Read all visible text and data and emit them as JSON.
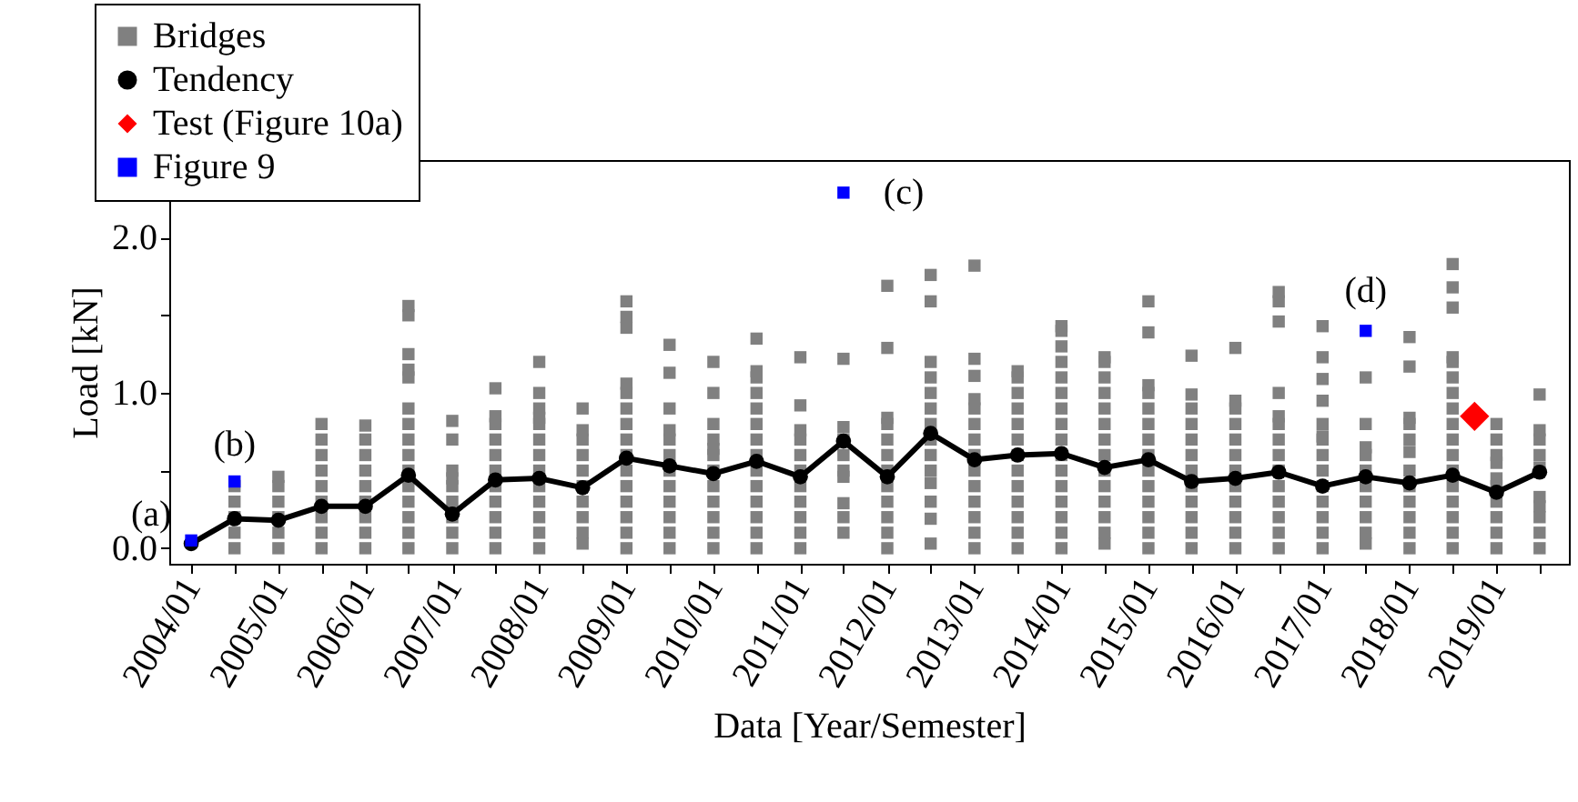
{
  "chart_data": {
    "type": "scatter",
    "xlabel": "Data [Year/Semester]",
    "ylabel": "Load [kN]",
    "xlim": [
      "2003-10",
      "2019-11"
    ],
    "ylim": [
      -0.1,
      2.5
    ],
    "xticks": [
      {
        "value": "2004-01",
        "label": "2004/01"
      },
      {
        "value": "2004-07",
        "label": null
      },
      {
        "value": "2005-01",
        "label": "2005/01"
      },
      {
        "value": "2005-07",
        "label": null
      },
      {
        "value": "2006-01",
        "label": "2006/01"
      },
      {
        "value": "2006-07",
        "label": null
      },
      {
        "value": "2007-01",
        "label": "2007/01"
      },
      {
        "value": "2007-07",
        "label": null
      },
      {
        "value": "2008-01",
        "label": "2008/01"
      },
      {
        "value": "2008-07",
        "label": null
      },
      {
        "value": "2009-01",
        "label": "2009/01"
      },
      {
        "value": "2009-07",
        "label": null
      },
      {
        "value": "2010-01",
        "label": "2010/01"
      },
      {
        "value": "2010-07",
        "label": null
      },
      {
        "value": "2011-01",
        "label": "2011/01"
      },
      {
        "value": "2011-07",
        "label": null
      },
      {
        "value": "2012-01",
        "label": "2012/01"
      },
      {
        "value": "2012-07",
        "label": null
      },
      {
        "value": "2013-01",
        "label": "2013/01"
      },
      {
        "value": "2013-07",
        "label": null
      },
      {
        "value": "2014-01",
        "label": "2014/01"
      },
      {
        "value": "2014-07",
        "label": null
      },
      {
        "value": "2015-01",
        "label": "2015/01"
      },
      {
        "value": "2015-07",
        "label": null
      },
      {
        "value": "2016-01",
        "label": "2016/01"
      },
      {
        "value": "2016-07",
        "label": null
      },
      {
        "value": "2017-01",
        "label": "2017/01"
      },
      {
        "value": "2017-07",
        "label": null
      },
      {
        "value": "2018-01",
        "label": "2018/01"
      },
      {
        "value": "2018-07",
        "label": null
      },
      {
        "value": "2019-01",
        "label": "2019/01"
      },
      {
        "value": "2019-07",
        "label": null
      }
    ],
    "yticks": [
      {
        "value": 0,
        "label": "0.0"
      },
      {
        "value": 0.5,
        "label": null
      },
      {
        "value": 1,
        "label": "1.0"
      },
      {
        "value": 1.5,
        "label": null
      },
      {
        "value": 2,
        "label": "2.0"
      }
    ],
    "legend": "top left",
    "grid": false,
    "series": [
      {
        "name": "Bridges",
        "marker": "square",
        "color": "#808080",
        "x": [
          "2004-07",
          "2004-07",
          "2004-07",
          "2004-07",
          "2004-07",
          "2005-01",
          "2005-01",
          "2005-01",
          "2005-01",
          "2005-01",
          "2005-01",
          "2005-07",
          "2005-07",
          "2005-07",
          "2005-07",
          "2005-07",
          "2005-07",
          "2005-07",
          "2005-07",
          "2005-07",
          "2006-01",
          "2006-01",
          "2006-01",
          "2006-01",
          "2006-01",
          "2006-01",
          "2006-01",
          "2006-01",
          "2006-01",
          "2006-07",
          "2006-07",
          "2006-07",
          "2006-07",
          "2006-07",
          "2006-07",
          "2006-07",
          "2006-07",
          "2006-07",
          "2006-07",
          "2006-07",
          "2006-07",
          "2006-07",
          "2006-07",
          "2006-07",
          "2007-01",
          "2007-01",
          "2007-01",
          "2007-01",
          "2007-01",
          "2007-01",
          "2007-01",
          "2007-01",
          "2007-01",
          "2007-07",
          "2007-07",
          "2007-07",
          "2007-07",
          "2007-07",
          "2007-07",
          "2007-07",
          "2007-07",
          "2007-07",
          "2007-07",
          "2007-07",
          "2008-01",
          "2008-01",
          "2008-01",
          "2008-01",
          "2008-01",
          "2008-01",
          "2008-01",
          "2008-01",
          "2008-01",
          "2008-01",
          "2008-01",
          "2008-01",
          "2008-01",
          "2008-07",
          "2008-07",
          "2008-07",
          "2008-07",
          "2008-07",
          "2008-07",
          "2008-07",
          "2008-07",
          "2008-07",
          "2008-07",
          "2009-01",
          "2009-01",
          "2009-01",
          "2009-01",
          "2009-01",
          "2009-01",
          "2009-01",
          "2009-01",
          "2009-01",
          "2009-01",
          "2009-01",
          "2009-01",
          "2009-01",
          "2009-01",
          "2009-01",
          "2009-07",
          "2009-07",
          "2009-07",
          "2009-07",
          "2009-07",
          "2009-07",
          "2009-07",
          "2009-07",
          "2009-07",
          "2009-07",
          "2009-07",
          "2009-07",
          "2010-01",
          "2010-01",
          "2010-01",
          "2010-01",
          "2010-01",
          "2010-01",
          "2010-01",
          "2010-01",
          "2010-01",
          "2010-01",
          "2010-01",
          "2010-01",
          "2010-07",
          "2010-07",
          "2010-07",
          "2010-07",
          "2010-07",
          "2010-07",
          "2010-07",
          "2010-07",
          "2010-07",
          "2010-07",
          "2010-07",
          "2010-07",
          "2010-07",
          "2010-07",
          "2011-01",
          "2011-01",
          "2011-01",
          "2011-01",
          "2011-01",
          "2011-01",
          "2011-01",
          "2011-01",
          "2011-01",
          "2011-01",
          "2011-01",
          "2011-07",
          "2011-07",
          "2011-07",
          "2011-07",
          "2011-07",
          "2011-07",
          "2011-07",
          "2011-07",
          "2011-07",
          "2012-01",
          "2012-01",
          "2012-01",
          "2012-01",
          "2012-01",
          "2012-01",
          "2012-01",
          "2012-01",
          "2012-01",
          "2012-01",
          "2012-01",
          "2012-01",
          "2012-07",
          "2012-07",
          "2012-07",
          "2012-07",
          "2012-07",
          "2012-07",
          "2012-07",
          "2012-07",
          "2012-07",
          "2012-07",
          "2012-07",
          "2012-07",
          "2012-07",
          "2012-07",
          "2013-01",
          "2013-01",
          "2013-01",
          "2013-01",
          "2013-01",
          "2013-01",
          "2013-01",
          "2013-01",
          "2013-01",
          "2013-01",
          "2013-01",
          "2013-01",
          "2013-01",
          "2013-01",
          "2013-07",
          "2013-07",
          "2013-07",
          "2013-07",
          "2013-07",
          "2013-07",
          "2013-07",
          "2013-07",
          "2013-07",
          "2013-07",
          "2013-07",
          "2013-07",
          "2013-07",
          "2014-01",
          "2014-01",
          "2014-01",
          "2014-01",
          "2014-01",
          "2014-01",
          "2014-01",
          "2014-01",
          "2014-01",
          "2014-01",
          "2014-01",
          "2014-01",
          "2014-01",
          "2014-01",
          "2014-01",
          "2014-01",
          "2014-07",
          "2014-07",
          "2014-07",
          "2014-07",
          "2014-07",
          "2014-07",
          "2014-07",
          "2014-07",
          "2014-07",
          "2014-07",
          "2014-07",
          "2014-07",
          "2014-07",
          "2014-07",
          "2015-01",
          "2015-01",
          "2015-01",
          "2015-01",
          "2015-01",
          "2015-01",
          "2015-01",
          "2015-01",
          "2015-01",
          "2015-01",
          "2015-01",
          "2015-01",
          "2015-01",
          "2015-01",
          "2015-07",
          "2015-07",
          "2015-07",
          "2015-07",
          "2015-07",
          "2015-07",
          "2015-07",
          "2015-07",
          "2015-07",
          "2015-07",
          "2015-07",
          "2015-07",
          "2016-01",
          "2016-01",
          "2016-01",
          "2016-01",
          "2016-01",
          "2016-01",
          "2016-01",
          "2016-01",
          "2016-01",
          "2016-01",
          "2016-01",
          "2016-01",
          "2016-07",
          "2016-07",
          "2016-07",
          "2016-07",
          "2016-07",
          "2016-07",
          "2016-07",
          "2016-07",
          "2016-07",
          "2016-07",
          "2016-07",
          "2016-07",
          "2016-07",
          "2016-07",
          "2017-01",
          "2017-01",
          "2017-01",
          "2017-01",
          "2017-01",
          "2017-01",
          "2017-01",
          "2017-01",
          "2017-01",
          "2017-01",
          "2017-01",
          "2017-01",
          "2017-01",
          "2017-01",
          "2017-07",
          "2017-07",
          "2017-07",
          "2017-07",
          "2017-07",
          "2017-07",
          "2017-07",
          "2017-07",
          "2017-07",
          "2017-07",
          "2018-01",
          "2018-01",
          "2018-01",
          "2018-01",
          "2018-01",
          "2018-01",
          "2018-01",
          "2018-01",
          "2018-01",
          "2018-01",
          "2018-01",
          "2018-01",
          "2018-07",
          "2018-07",
          "2018-07",
          "2018-07",
          "2018-07",
          "2018-07",
          "2018-07",
          "2018-07",
          "2018-07",
          "2018-07",
          "2018-07",
          "2018-07",
          "2018-07",
          "2018-07",
          "2018-07",
          "2018-07",
          "2018-07",
          "2019-01",
          "2019-01",
          "2019-01",
          "2019-01",
          "2019-01",
          "2019-01",
          "2019-01",
          "2019-01",
          "2019-01",
          "2019-01",
          "2019-07",
          "2019-07",
          "2019-07",
          "2019-07",
          "2019-07",
          "2019-07",
          "2019-07",
          "2019-07",
          "2019-07",
          "2019-07"
        ],
        "values": [
          0,
          0.1,
          0.2,
          0.3,
          0.4,
          0,
          0.1,
          0.2,
          0.3,
          0.4,
          0.46,
          0,
          0.1,
          0.2,
          0.3,
          0.4,
          0.5,
          0.6,
          0.7,
          0.8,
          0,
          0.1,
          0.2,
          0.3,
          0.4,
          0.5,
          0.6,
          0.7,
          0.79,
          0,
          0.1,
          0.2,
          0.3,
          0.4,
          0.5,
          0.6,
          0.7,
          0.8,
          0.9,
          1.1,
          1.15,
          1.25,
          1.5,
          1.56,
          0,
          0.1,
          0.2,
          0.3,
          0.4,
          0.45,
          0.5,
          0.7,
          0.82,
          0,
          0.1,
          0.2,
          0.3,
          0.4,
          0.5,
          0.6,
          0.7,
          0.8,
          0.85,
          1.03,
          0,
          0.1,
          0.2,
          0.3,
          0.4,
          0.5,
          0.6,
          0.7,
          0.8,
          0.84,
          0.9,
          1.0,
          1.2,
          0.03,
          0.1,
          0.2,
          0.3,
          0.4,
          0.5,
          0.6,
          0.7,
          0.76,
          0.9,
          0,
          0.1,
          0.2,
          0.3,
          0.4,
          0.5,
          0.6,
          0.7,
          0.8,
          0.9,
          1.0,
          1.06,
          1.42,
          1.49,
          1.59,
          0,
          0.1,
          0.2,
          0.3,
          0.4,
          0.5,
          0.6,
          0.7,
          0.76,
          0.9,
          1.13,
          1.31,
          0,
          0.1,
          0.2,
          0.3,
          0.4,
          0.5,
          0.6,
          0.64,
          0.7,
          0.8,
          1.0,
          1.2,
          0,
          0.1,
          0.2,
          0.3,
          0.4,
          0.5,
          0.6,
          0.7,
          0.8,
          0.9,
          1.0,
          1.1,
          1.14,
          1.35,
          0,
          0.1,
          0.2,
          0.3,
          0.4,
          0.5,
          0.6,
          0.7,
          0.76,
          0.92,
          1.23,
          0.1,
          0.2,
          0.29,
          0.46,
          0.5,
          0.6,
          0.7,
          0.78,
          1.22,
          0,
          0.1,
          0.2,
          0.3,
          0.4,
          0.5,
          0.6,
          0.7,
          0.8,
          0.84,
          1.29,
          1.69,
          0.03,
          0.19,
          0.3,
          0.42,
          0.5,
          0.6,
          0.7,
          0.8,
          0.9,
          1.0,
          1.1,
          1.2,
          1.59,
          1.76,
          0,
          0.1,
          0.2,
          0.3,
          0.4,
          0.5,
          0.6,
          0.7,
          0.8,
          0.9,
          0.96,
          1.11,
          1.22,
          1.82,
          0,
          0.1,
          0.2,
          0.3,
          0.4,
          0.5,
          0.6,
          0.7,
          0.8,
          0.9,
          1.0,
          1.1,
          1.14,
          0,
          0.1,
          0.2,
          0.3,
          0.4,
          0.5,
          0.6,
          0.7,
          0.8,
          0.9,
          1.0,
          1.1,
          1.2,
          1.3,
          1.4,
          1.43,
          0.03,
          0.1,
          0.2,
          0.3,
          0.4,
          0.5,
          0.6,
          0.7,
          0.8,
          0.9,
          1.0,
          1.1,
          1.2,
          1.23,
          0,
          0.1,
          0.2,
          0.3,
          0.4,
          0.5,
          0.6,
          0.7,
          0.8,
          0.9,
          1.0,
          1.05,
          1.39,
          1.59,
          0,
          0.1,
          0.2,
          0.3,
          0.4,
          0.5,
          0.6,
          0.7,
          0.8,
          0.9,
          0.99,
          1.24,
          0,
          0.1,
          0.2,
          0.3,
          0.4,
          0.5,
          0.6,
          0.7,
          0.8,
          0.9,
          0.95,
          1.29,
          0,
          0.1,
          0.2,
          0.3,
          0.4,
          0.5,
          0.6,
          0.7,
          0.8,
          0.85,
          1.0,
          1.46,
          1.59,
          1.65,
          0,
          0.1,
          0.2,
          0.3,
          0.4,
          0.5,
          0.6,
          0.7,
          0.72,
          0.8,
          0.95,
          1.09,
          1.23,
          1.43,
          0.03,
          0.1,
          0.2,
          0.3,
          0.4,
          0.5,
          0.6,
          0.65,
          0.8,
          1.1,
          0,
          0.1,
          0.2,
          0.3,
          0.4,
          0.5,
          0.62,
          0.7,
          0.8,
          0.84,
          1.17,
          1.36,
          0,
          0.1,
          0.2,
          0.3,
          0.4,
          0.5,
          0.6,
          0.7,
          0.8,
          0.9,
          1.0,
          1.1,
          1.2,
          1.23,
          1.55,
          1.68,
          1.83,
          0,
          0.1,
          0.2,
          0.3,
          0.4,
          0.45,
          0.55,
          0.6,
          0.7,
          0.8,
          0,
          0.1,
          0.2,
          0.27,
          0.33,
          0.52,
          0.6,
          0.7,
          0.76,
          0.99
        ]
      },
      {
        "name": "Tendency",
        "type": "line",
        "marker": "circle",
        "color": "#000000",
        "x": [
          "2004-01",
          "2004-07",
          "2005-01",
          "2005-07",
          "2006-01",
          "2006-07",
          "2007-01",
          "2007-07",
          "2008-01",
          "2008-07",
          "2009-01",
          "2009-07",
          "2010-01",
          "2010-07",
          "2011-01",
          "2011-07",
          "2012-01",
          "2012-07",
          "2013-01",
          "2013-07",
          "2014-01",
          "2014-07",
          "2015-01",
          "2015-07",
          "2016-01",
          "2016-07",
          "2017-01",
          "2017-07",
          "2018-01",
          "2018-07",
          "2019-01",
          "2019-07"
        ],
        "values": [
          0.03,
          0.19,
          0.18,
          0.27,
          0.27,
          0.47,
          0.22,
          0.44,
          0.45,
          0.39,
          0.58,
          0.53,
          0.48,
          0.56,
          0.46,
          0.69,
          0.46,
          0.74,
          0.57,
          0.6,
          0.61,
          0.52,
          0.57,
          0.43,
          0.45,
          0.49,
          0.4,
          0.46,
          0.42,
          0.47,
          0.36,
          0.49
        ]
      },
      {
        "name": "Test (Figure 10a)",
        "marker": "diamond",
        "color": "#ff0000",
        "x": [
          "2018-10"
        ],
        "values": [
          0.85
        ]
      },
      {
        "name": "Figure 9",
        "marker": "square",
        "color": "#0000ff",
        "x": [
          "2004-01",
          "2004-07",
          "2011-07",
          "2017-07"
        ],
        "values": [
          0.05,
          0.43,
          2.29,
          1.4
        ]
      }
    ],
    "annotations": [
      {
        "text": "(a)",
        "x": "2004-01",
        "y": 0.05
      },
      {
        "text": "(b)",
        "x": "2004-07",
        "y": 0.43
      },
      {
        "text": "(c)",
        "x": "2011-07",
        "y": 2.29
      },
      {
        "text": "(d)",
        "x": "2017-07",
        "y": 1.4
      }
    ]
  }
}
